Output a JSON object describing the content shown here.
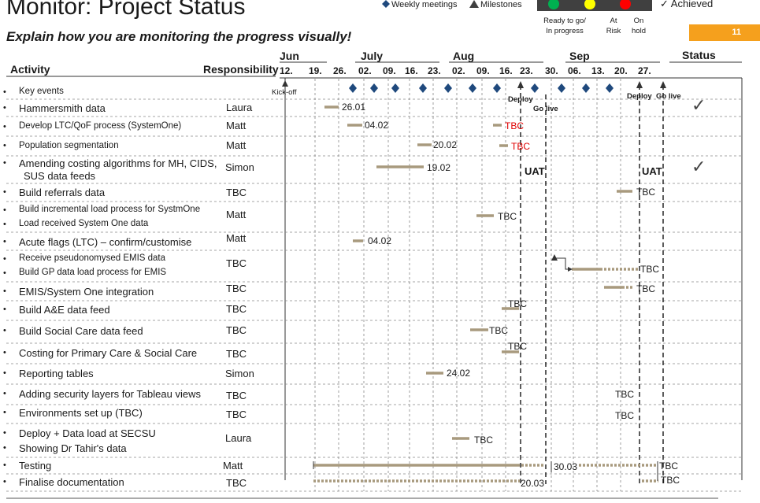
{
  "title": "Monitor: Project Status",
  "subtitle": "Explain how you are monitoring the progress visually!",
  "page_number": "11",
  "legend": {
    "weekly_meetings": "Weekly meetings",
    "milestones": "Milestones",
    "ready_line1": "Ready to go/",
    "ready_line2": "In progress",
    "at_risk_line1": "At",
    "at_risk_line2": "Risk",
    "on_hold_line1": "On",
    "on_hold_line2": "hold",
    "achieved": "Achieved",
    "colors": {
      "ready": "#00b050",
      "at_risk": "#ffff00",
      "on_hold": "#ff0000",
      "panel": "#404040",
      "bar": "#a89a7e",
      "milestone": "#1f497d"
    }
  },
  "headers": {
    "activity": "Activity",
    "responsibility": "Responsibility",
    "status": "Status"
  },
  "months": [
    "Jun",
    "July",
    "Aug",
    "Sep"
  ],
  "weeks": [
    "12.",
    "19.",
    "26.",
    "02.",
    "09.",
    "16.",
    "23.",
    "02.",
    "09.",
    "16.",
    "23.",
    "30.",
    "06.",
    "13.",
    "20.",
    "27."
  ],
  "rows": [
    {
      "bullet": "•",
      "activity": "Key events",
      "responsibility": ""
    },
    {
      "bullet": "•",
      "activity": "Hammersmith data",
      "responsibility": "Laura"
    },
    {
      "bullet": "•",
      "activity": "Develop LTC/QoF process (SystemOne)",
      "responsibility": "Matt"
    },
    {
      "bullet": "•",
      "activity": "Population segmentation",
      "responsibility": "Matt"
    },
    {
      "bullet": "•",
      "activity": "Amending costing algorithms for MH, CIDS,",
      "activity2": "SUS data feeds",
      "responsibility": "Simon"
    },
    {
      "bullet": "•",
      "activity": "Build referrals data",
      "responsibility": "TBC"
    },
    {
      "bullet": "•",
      "activity": "Build incremental load process for SystmOne",
      "responsibility": "Matt"
    },
    {
      "bullet": "•",
      "activity": "Load received System One data",
      "responsibility": ""
    },
    {
      "bullet": "•",
      "activity": "Acute flags (LTC) – confirm/customise",
      "responsibility": "Matt"
    },
    {
      "bullet": "•",
      "activity": "Receive pseudonomysed EMIS data",
      "responsibility": "TBC"
    },
    {
      "bullet": "•",
      "activity": "Build GP data load process for EMIS",
      "responsibility": ""
    },
    {
      "bullet": "•",
      "activity": "EMIS/System One integration",
      "responsibility": "TBC"
    },
    {
      "bullet": "•",
      "activity": "Build A&E data feed",
      "responsibility": "TBC"
    },
    {
      "bullet": "•",
      "activity": "Build Social Care data feed",
      "responsibility": "TBC"
    },
    {
      "bullet": "•",
      "activity": "Costing for Primary Care & Social Care",
      "responsibility": "TBC"
    },
    {
      "bullet": "•",
      "activity": "Reporting tables",
      "responsibility": "Simon"
    },
    {
      "bullet": "•",
      "activity": "Adding security layers for Tableau views",
      "responsibility": "TBC"
    },
    {
      "bullet": "•",
      "activity": "Environments set up (TBC)",
      "responsibility": "TBC"
    },
    {
      "bullet": "•",
      "activity": "Deploy + Data load at SECSU",
      "responsibility": "Laura"
    },
    {
      "bullet": "•",
      "activity": "Showing Dr Tahir's data",
      "responsibility": ""
    },
    {
      "bullet": "•",
      "activity": "Testing",
      "responsibility": "Matt"
    },
    {
      "bullet": "•",
      "activity": "Finalise documentation",
      "responsibility": "TBC"
    }
  ],
  "chart_labels": {
    "kickoff": "Kick-off",
    "deploy": "Deploy",
    "go_live": "Go live",
    "uat": "UAT",
    "hammersmith": "26.01",
    "ltc_qof": "04.02",
    "tbc": "TBC",
    "pop_seg": "20.02",
    "costing_alg": "19.02",
    "acute": "04.02",
    "reporting": "24.02",
    "testing": "30.03",
    "documentation": "20.03",
    "check": "✓"
  }
}
